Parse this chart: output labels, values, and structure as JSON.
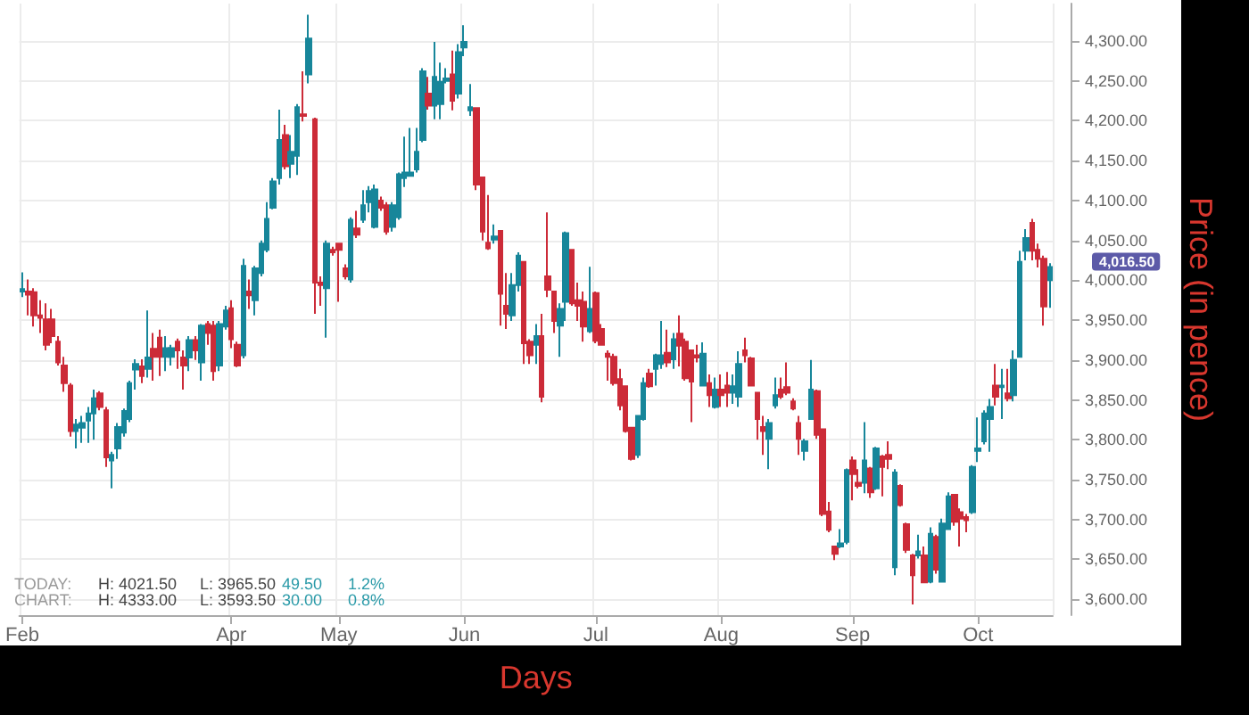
{
  "chart_data": {
    "type": "candlestick",
    "xlabel": "Days",
    "ylabel": "Price (in pence)",
    "categories": [
      "Feb",
      null,
      null,
      null,
      null,
      null,
      null,
      null,
      null,
      null,
      null,
      null,
      null,
      null,
      null,
      null,
      null,
      null,
      null,
      null,
      null,
      null,
      null,
      null,
      null,
      null,
      null,
      null,
      null,
      null,
      null,
      null,
      null,
      null,
      null,
      "Apr",
      null,
      null,
      null,
      null,
      null,
      null,
      null,
      null,
      null,
      null,
      null,
      null,
      null,
      null,
      null,
      null,
      null,
      "May",
      null,
      null,
      null,
      null,
      null,
      null,
      null,
      null,
      null,
      null,
      null,
      null,
      null,
      null,
      null,
      null,
      null,
      null,
      null,
      null,
      "Jun",
      null,
      null,
      null,
      null,
      null,
      null,
      null,
      null,
      null,
      null,
      null,
      null,
      null,
      null,
      null,
      null,
      null,
      null,
      null,
      null,
      null,
      "Jul",
      null,
      null,
      null,
      null,
      null,
      null,
      null,
      null,
      null,
      null,
      null,
      null,
      null,
      null,
      null,
      null,
      null,
      null,
      null,
      null,
      "Aug",
      null,
      null,
      null,
      null,
      null,
      null,
      null,
      null,
      null,
      null,
      null,
      null,
      null,
      null,
      null,
      null,
      null,
      null,
      null,
      null,
      null,
      "Sep",
      null,
      null,
      null,
      null,
      null,
      null,
      null,
      null,
      null,
      null,
      null,
      null,
      null,
      null,
      null,
      null,
      null,
      null,
      null,
      null,
      "Oct",
      null,
      null,
      null,
      null,
      null,
      null,
      null,
      null,
      null,
      null,
      null,
      null
    ],
    "ohlc": [
      [
        3986,
        4010,
        3979,
        3989
      ],
      [
        3986,
        4001,
        3956,
        3982
      ],
      [
        3985,
        3990,
        3942,
        3956
      ],
      [
        3956,
        3975,
        3934,
        3953
      ],
      [
        3951,
        3971,
        3912,
        3919
      ],
      [
        3951,
        3964,
        3921,
        3930
      ],
      [
        3923,
        3930,
        3893,
        3897
      ],
      [
        3893,
        3904,
        3860,
        3871
      ],
      [
        3868,
        3871,
        3804,
        3811
      ],
      [
        3811,
        3826,
        3789,
        3819
      ],
      [
        3815,
        3830,
        3796,
        3821
      ],
      [
        3824,
        3841,
        3796,
        3833
      ],
      [
        3833,
        3863,
        3800,
        3852
      ],
      [
        3858,
        3861,
        3837,
        3841
      ],
      [
        3837,
        3841,
        3766,
        3778
      ],
      [
        3774,
        3785,
        3739,
        3781
      ],
      [
        3789,
        3821,
        3776,
        3816
      ],
      [
        3809,
        3839,
        3804,
        3836
      ],
      [
        3826,
        3874,
        3822,
        3871
      ],
      [
        3888,
        3901,
        3863,
        3895
      ],
      [
        3892,
        3901,
        3871,
        3880
      ],
      [
        3889,
        3962,
        3878,
        3903
      ],
      [
        3914,
        3934,
        3874,
        3904
      ],
      [
        3928,
        3938,
        3880,
        3904
      ],
      [
        3904,
        3930,
        3886,
        3915
      ],
      [
        3904,
        3919,
        3893,
        3915
      ],
      [
        3923,
        3927,
        3889,
        3912
      ],
      [
        3903,
        3912,
        3863,
        3893
      ],
      [
        3903,
        3930,
        3886,
        3925
      ],
      [
        3925,
        3930,
        3900,
        3912
      ],
      [
        3897,
        3945,
        3874,
        3943
      ],
      [
        3945,
        3949,
        3919,
        3934
      ],
      [
        3943,
        3949,
        3874,
        3886
      ],
      [
        3893,
        3949,
        3886,
        3945
      ],
      [
        3942,
        3968,
        3938,
        3962
      ],
      [
        3965,
        3975,
        3915,
        3926
      ],
      [
        3919,
        3923,
        3891,
        3893
      ],
      [
        3906,
        4027,
        3902,
        4018
      ],
      [
        3986,
        4001,
        3964,
        3981
      ],
      [
        3975,
        4018,
        3956,
        4015
      ],
      [
        4009,
        4050,
        4005,
        4046
      ],
      [
        4038,
        4098,
        4035,
        4077
      ],
      [
        4091,
        4128,
        4089,
        4124
      ],
      [
        4128,
        4214,
        4120,
        4176
      ],
      [
        4182,
        4195,
        4139,
        4143
      ],
      [
        4146,
        4182,
        4128,
        4161
      ],
      [
        4156,
        4221,
        4132,
        4217
      ],
      [
        4208,
        4262,
        4199,
        4206
      ],
      [
        4258,
        4333,
        4247,
        4303
      ],
      [
        4202,
        4204,
        3958,
        3997
      ],
      [
        3997,
        4005,
        3968,
        3994
      ],
      [
        3990,
        4050,
        3928,
        4046
      ],
      [
        4038,
        4042,
        4031,
        4035
      ],
      [
        4046,
        4047,
        3973,
        4038
      ],
      [
        4015,
        4020,
        4001,
        4005
      ],
      [
        4001,
        4079,
        3997,
        4076
      ],
      [
        4065,
        4087,
        4053,
        4057
      ],
      [
        4076,
        4113,
        4072,
        4094
      ],
      [
        4098,
        4118,
        4085,
        4112
      ],
      [
        4067,
        4120,
        4065,
        4114
      ],
      [
        4100,
        4105,
        4087,
        4091
      ],
      [
        4094,
        4098,
        4057,
        4061
      ],
      [
        4067,
        4098,
        4061,
        4094
      ],
      [
        4079,
        4135,
        4076,
        4133
      ],
      [
        4128,
        4180,
        4117,
        4135
      ],
      [
        4131,
        4191,
        4130,
        4135
      ],
      [
        4139,
        4191,
        4135,
        4161
      ],
      [
        4176,
        4266,
        4173,
        4262
      ],
      [
        4234,
        4255,
        4214,
        4219
      ],
      [
        4219,
        4299,
        4202,
        4255
      ],
      [
        4221,
        4273,
        4202,
        4249
      ],
      [
        4250,
        4266,
        4247,
        4253
      ],
      [
        4258,
        4288,
        4213,
        4225
      ],
      [
        4234,
        4296,
        4228,
        4286
      ],
      [
        4292,
        4320,
        4281,
        4299
      ],
      [
        4213,
        4246,
        4206,
        4217
      ],
      [
        4216,
        4217,
        4113,
        4120
      ],
      [
        4129,
        4129,
        4050,
        4061
      ],
      [
        4047,
        4107,
        4038,
        4040
      ],
      [
        4051,
        4070,
        4046,
        4055
      ],
      [
        4062,
        4062,
        3943,
        3983
      ],
      [
        3968,
        4009,
        3939,
        3958
      ],
      [
        3956,
        4009,
        3949,
        3994
      ],
      [
        3994,
        4035,
        3986,
        4031
      ],
      [
        4023,
        4023,
        3895,
        3921
      ],
      [
        3923,
        3926,
        3895,
        3906
      ],
      [
        3919,
        3945,
        3895,
        3930
      ],
      [
        3930,
        3958,
        3847,
        3854
      ],
      [
        4005,
        4085,
        3979,
        3988
      ],
      [
        3986,
        3986,
        3934,
        3949
      ],
      [
        3943,
        3971,
        3904,
        3964
      ],
      [
        3973,
        4061,
        3949,
        4059
      ],
      [
        4038,
        4038,
        3968,
        3971
      ],
      [
        3975,
        3997,
        3949,
        3968
      ],
      [
        3973,
        3986,
        3923,
        3942
      ],
      [
        3936,
        4017,
        3934,
        3964
      ],
      [
        3984,
        3986,
        3921,
        3924
      ],
      [
        3939,
        3945,
        3918,
        3919
      ],
      [
        3908,
        3912,
        3874,
        3904
      ],
      [
        3904,
        3908,
        3868,
        3871
      ],
      [
        3876,
        3889,
        3837,
        3843
      ],
      [
        3867,
        3867,
        3809,
        3811
      ],
      [
        3815,
        3815,
        3774,
        3776
      ],
      [
        3781,
        3831,
        3777,
        3830
      ],
      [
        3826,
        3878,
        3824,
        3871
      ],
      [
        3883,
        3889,
        3865,
        3867
      ],
      [
        3889,
        3908,
        3868,
        3906
      ],
      [
        3895,
        3949,
        3889,
        3906
      ],
      [
        3909,
        3938,
        3891,
        3897
      ],
      [
        3901,
        3934,
        3889,
        3926
      ],
      [
        3933,
        3956,
        3892,
        3918
      ],
      [
        3923,
        3927,
        3874,
        3877
      ],
      [
        3912,
        3913,
        3822,
        3873
      ],
      [
        3906,
        3919,
        3897,
        3903
      ],
      [
        3868,
        3922,
        3867,
        3908
      ],
      [
        3871,
        3882,
        3841,
        3856
      ],
      [
        3841,
        3878,
        3839,
        3863
      ],
      [
        3863,
        3882,
        3841,
        3856
      ],
      [
        3868,
        3885,
        3841,
        3859
      ],
      [
        3859,
        3882,
        3845,
        3867
      ],
      [
        3854,
        3911,
        3841,
        3895
      ],
      [
        3912,
        3928,
        3897,
        3906
      ],
      [
        3902,
        3904,
        3867,
        3868
      ],
      [
        3859,
        3859,
        3800,
        3826
      ],
      [
        3816,
        3830,
        3781,
        3811
      ],
      [
        3801,
        3826,
        3763,
        3821
      ],
      [
        3843,
        3878,
        3839,
        3856
      ],
      [
        3863,
        3878,
        3851,
        3854
      ],
      [
        3866,
        3897,
        3856,
        3859
      ],
      [
        3848,
        3852,
        3837,
        3839
      ],
      [
        3821,
        3830,
        3781,
        3801
      ],
      [
        3786,
        3801,
        3774,
        3798
      ],
      [
        3826,
        3900,
        3826,
        3863
      ],
      [
        3861,
        3863,
        3801,
        3806
      ],
      [
        3813,
        3813,
        3704,
        3707
      ],
      [
        3710,
        3722,
        3684,
        3687
      ],
      [
        3666,
        3667,
        3649,
        3657
      ],
      [
        3666,
        3688,
        3664,
        3670
      ],
      [
        3672,
        3764,
        3669,
        3762
      ],
      [
        3774,
        3779,
        3724,
        3757
      ],
      [
        3746,
        3763,
        3739,
        3742
      ],
      [
        3746,
        3822,
        3733,
        3774
      ],
      [
        3764,
        3766,
        3727,
        3734
      ],
      [
        3739,
        3791,
        3737,
        3789
      ],
      [
        3779,
        3781,
        3729,
        3766
      ],
      [
        3781,
        3798,
        3763,
        3776
      ],
      [
        3640,
        3763,
        3630,
        3759
      ],
      [
        3742,
        3744,
        3716,
        3718
      ],
      [
        3694,
        3696,
        3658,
        3662
      ],
      [
        3655,
        3657,
        3593.5,
        3630
      ],
      [
        3655,
        3681,
        3651,
        3660
      ],
      [
        3655,
        3666,
        3620,
        3621
      ],
      [
        3622,
        3690,
        3620,
        3682
      ],
      [
        3678,
        3681,
        3632,
        3637
      ],
      [
        3622,
        3701,
        3621,
        3695
      ],
      [
        3688,
        3734,
        3687,
        3729
      ],
      [
        3731,
        3731,
        3692,
        3697
      ],
      [
        3709,
        3714,
        3666,
        3701
      ],
      [
        3703,
        3707,
        3684,
        3699
      ],
      [
        3709,
        3768,
        3707,
        3766
      ],
      [
        3786,
        3828,
        3772,
        3789
      ],
      [
        3798,
        3837,
        3794,
        3833
      ],
      [
        3826,
        3851,
        3785,
        3841
      ],
      [
        3868,
        3895,
        3843,
        3854
      ],
      [
        3866,
        3889,
        3826,
        3868
      ],
      [
        3858,
        3889,
        3848,
        3852
      ],
      [
        3856,
        3912,
        3848,
        3900
      ],
      [
        3904,
        4037,
        3903,
        4023
      ],
      [
        4037,
        4064,
        4025,
        4053
      ],
      [
        4072,
        4077,
        4025,
        4037
      ],
      [
        4038,
        4046,
        4016,
        4027
      ],
      [
        4027,
        4031,
        3943,
        3967
      ],
      [
        4000,
        4021.5,
        3965.5,
        4016.5
      ]
    ],
    "ylim": [
      3580,
      4347
    ],
    "yticks": [
      {
        "value": 3600,
        "label": "3,600.00"
      },
      {
        "value": 3650,
        "label": "3,650.00"
      },
      {
        "value": 3700,
        "label": "3,700.00"
      },
      {
        "value": 3750,
        "label": "3,750.00"
      },
      {
        "value": 3800,
        "label": "3,800.00"
      },
      {
        "value": 3850,
        "label": "3,850.00"
      },
      {
        "value": 3900,
        "label": "3,900.00"
      },
      {
        "value": 3950,
        "label": "3,950.00"
      },
      {
        "value": 4000,
        "label": "4,000.00"
      },
      {
        "value": 4050,
        "label": "4,050.00"
      },
      {
        "value": 4100,
        "label": "4,100.00"
      },
      {
        "value": 4150,
        "label": "4,150.00"
      },
      {
        "value": 4200,
        "label": "4,200.00"
      },
      {
        "value": 4250,
        "label": "4,250.00"
      },
      {
        "value": 4300,
        "label": "4,300.00"
      }
    ],
    "grid": true,
    "annotations": [
      "TODAY:",
      "H: 4021.50",
      "L: 3965.50",
      "49.50",
      "1.2%",
      "CHART:",
      "H: 4333.00",
      "L: 3593.50",
      "30.00",
      "0.8%",
      "4,016.50"
    ]
  }
}
